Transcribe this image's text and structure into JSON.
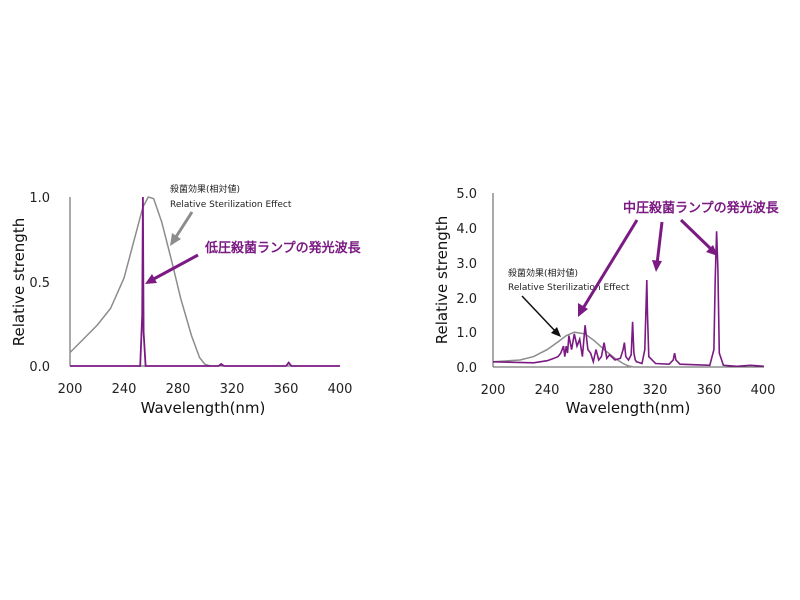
{
  "colors": {
    "purple": "#7a1a82",
    "gray": "#8c8c8c",
    "axis": "#555555"
  },
  "chart_data": [
    {
      "type": "line",
      "xlabel": "Wavelength(nm)",
      "ylabel": "Relative strength",
      "xlim": [
        200,
        400
      ],
      "ylim": [
        0,
        1.0
      ],
      "xticks": [
        "200",
        "240",
        "280",
        "320",
        "360",
        "400"
      ],
      "yticks": [
        "0.0",
        "0.5",
        "1.0"
      ],
      "series": [
        {
          "color": "gray",
          "x": [
            200,
            210,
            220,
            230,
            240,
            248,
            254,
            258,
            262,
            268,
            275,
            282,
            290,
            296,
            300,
            304
          ],
          "y": [
            0.08,
            0.16,
            0.24,
            0.34,
            0.52,
            0.76,
            0.94,
            1.0,
            0.99,
            0.85,
            0.63,
            0.4,
            0.18,
            0.05,
            0.01,
            0.0
          ]
        },
        {
          "color": "purple",
          "x": [
            200,
            252,
            253.5,
            254,
            254.5,
            256,
            262,
            310,
            312,
            314,
            360,
            362,
            364,
            400
          ],
          "y": [
            0.0,
            0.0,
            0.3,
            1.0,
            0.2,
            0.0,
            0.0,
            0.0,
            0.012,
            0.0,
            0.0,
            0.02,
            0.0,
            0.0
          ]
        }
      ],
      "annotations": {
        "effect_jp": "殺菌効果(相対値)",
        "effect_en": "Relative Sterilization Effect",
        "lamp": "低圧殺菌ランプの発光波長"
      }
    },
    {
      "type": "line",
      "xlabel": "Wavelength(nm)",
      "ylabel": "Relative strength",
      "xlim": [
        200,
        400
      ],
      "ylim": [
        0,
        5.0
      ],
      "xticks": [
        "200",
        "240",
        "280",
        "320",
        "360",
        "400"
      ],
      "yticks": [
        "0.0",
        "1.0",
        "2.0",
        "3.0",
        "4.0",
        "5.0"
      ],
      "series": [
        {
          "color": "gray",
          "x": [
            200,
            220,
            230,
            240,
            248,
            254,
            260,
            268,
            275,
            282,
            290,
            296,
            300,
            304
          ],
          "y": [
            0.15,
            0.2,
            0.3,
            0.5,
            0.72,
            0.9,
            1.0,
            0.95,
            0.75,
            0.5,
            0.25,
            0.1,
            0.03,
            0.0
          ]
        },
        {
          "color": "purple",
          "x": [
            200,
            230,
            240,
            245,
            248,
            250,
            252,
            253,
            254,
            255,
            256,
            258,
            260,
            262,
            264,
            266,
            268,
            270,
            272,
            274,
            276,
            278,
            280,
            282,
            284,
            286,
            290,
            294,
            296,
            297,
            298,
            300,
            302,
            303,
            304,
            305,
            306,
            310,
            312,
            313,
            313.5,
            314,
            315,
            320,
            330,
            333,
            334,
            335,
            338,
            360,
            363,
            364,
            365,
            366,
            367,
            370,
            380,
            390,
            400
          ],
          "y": [
            0.15,
            0.12,
            0.18,
            0.25,
            0.3,
            0.4,
            0.6,
            0.3,
            0.6,
            0.4,
            0.9,
            0.5,
            0.95,
            0.6,
            0.8,
            0.3,
            1.2,
            0.5,
            0.4,
            0.15,
            0.5,
            0.2,
            0.3,
            0.7,
            0.25,
            0.35,
            0.2,
            0.25,
            0.5,
            0.7,
            0.3,
            0.2,
            0.35,
            1.3,
            0.4,
            0.2,
            0.15,
            0.1,
            0.5,
            1.8,
            2.5,
            1.5,
            0.3,
            0.1,
            0.08,
            0.2,
            0.4,
            0.2,
            0.08,
            0.05,
            0.5,
            2.5,
            3.9,
            2.8,
            0.4,
            0.05,
            0.02,
            0.05,
            0.02
          ]
        }
      ],
      "annotations": {
        "effect_jp": "殺菌効果(相対値)",
        "effect_en": "Relative Sterilization Effect",
        "lamp": "中圧殺菌ランプの発光波長"
      }
    }
  ]
}
